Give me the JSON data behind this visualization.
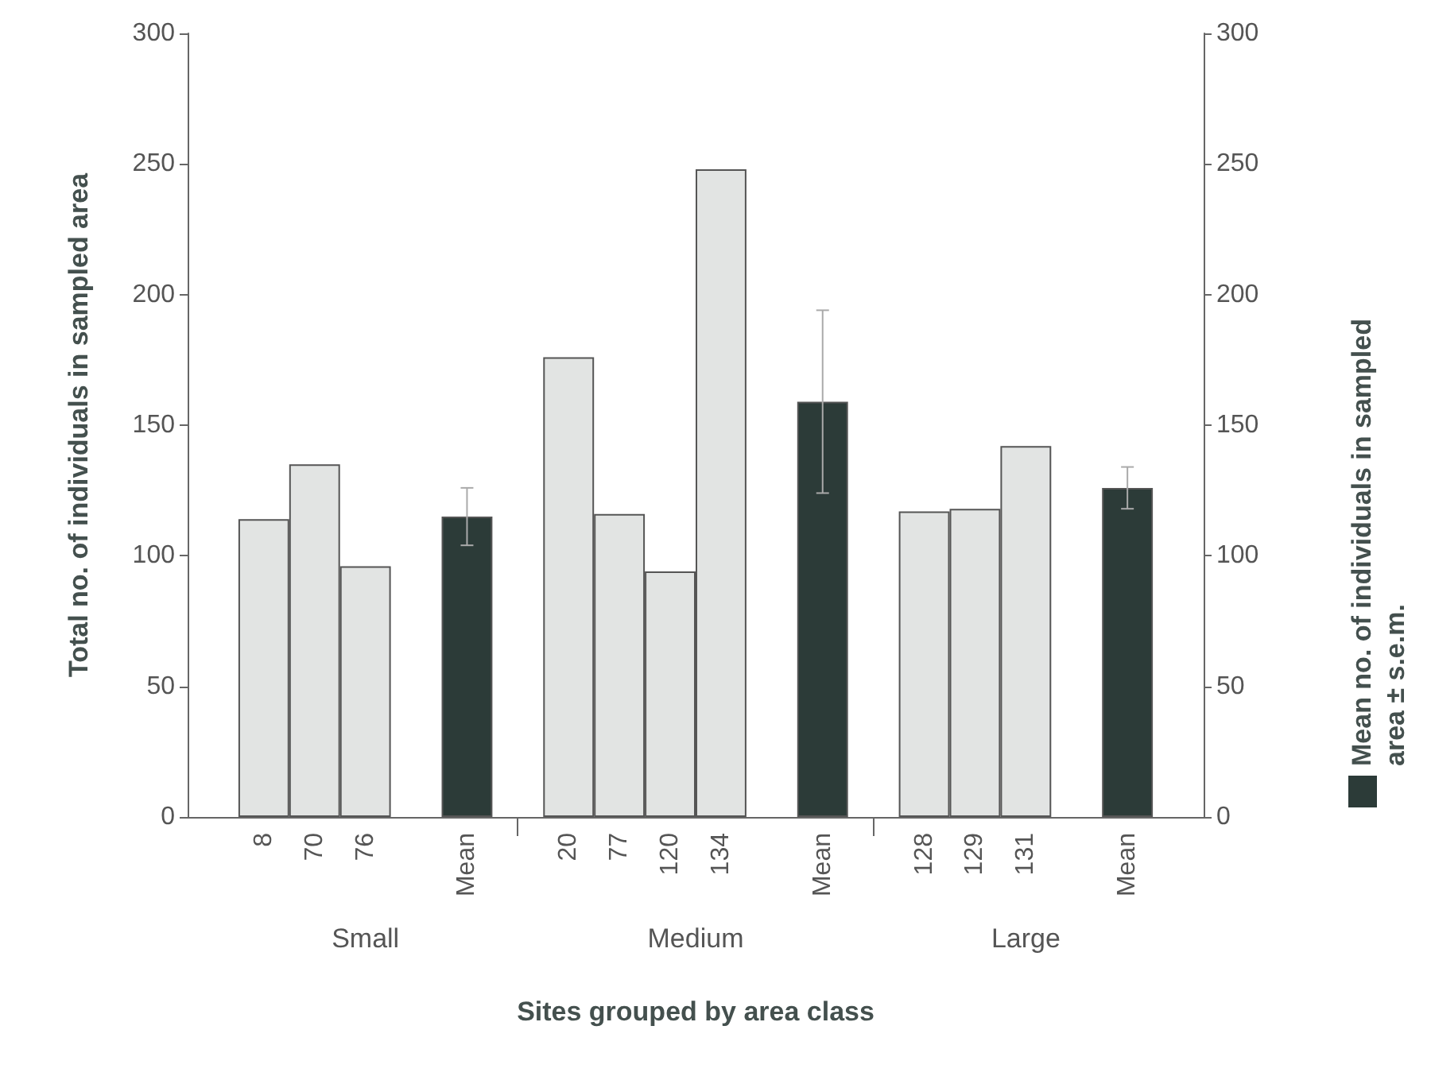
{
  "chart_data": {
    "type": "bar",
    "categories": [
      null,
      "8",
      "70",
      "76",
      null,
      "Mean",
      null,
      "20",
      "77",
      "120",
      "134",
      null,
      "Mean",
      null,
      "128",
      "129",
      "131",
      null,
      "Mean",
      null
    ],
    "series": [
      {
        "color": "#e2e4e3",
        "values": [
          null,
          114,
          135,
          96,
          null,
          null,
          null,
          176,
          116,
          94,
          248,
          null,
          null,
          null,
          117,
          118,
          142,
          null,
          null,
          null
        ]
      },
      {
        "name": "Mean no. of individuals in sampled area ± s.e.m.",
        "color": "#2c3b38",
        "values": [
          null,
          null,
          null,
          null,
          null,
          115,
          null,
          null,
          null,
          null,
          null,
          null,
          159,
          null,
          null,
          null,
          null,
          null,
          126,
          null
        ],
        "errors": [
          null,
          null,
          null,
          null,
          null,
          11,
          null,
          null,
          null,
          null,
          null,
          null,
          35,
          null,
          null,
          null,
          null,
          null,
          8,
          null
        ]
      }
    ],
    "ylabel": "Total no. of individuals in sampled area",
    "xlabel": "Sites grouped by area class",
    "ylim": [
      0,
      300
    ],
    "yticks": [
      0,
      50,
      100,
      150,
      200,
      250,
      300
    ],
    "y2lim": [
      0,
      300
    ],
    "y2ticks": [
      0,
      50,
      100,
      150,
      200,
      250,
      300
    ],
    "annotations": [
      "Small",
      "Medium",
      "Large"
    ],
    "legend": "right",
    "grid": false
  }
}
